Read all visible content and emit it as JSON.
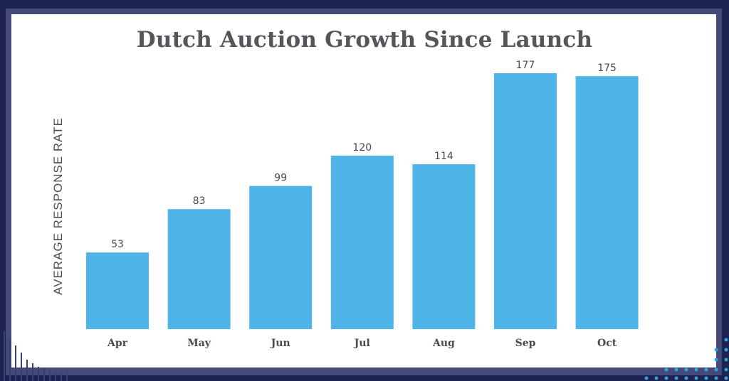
{
  "chart_data": {
    "type": "bar",
    "title": "Dutch Auction Growth Since Launch",
    "xlabel": "",
    "ylabel": "AVERAGE RESPONSE RATE",
    "categories": [
      "Apr",
      "May",
      "Jun",
      "Jul",
      "Aug",
      "Sep",
      "Oct"
    ],
    "values": [
      53,
      83,
      99,
      120,
      114,
      177,
      175
    ],
    "ylim": [
      0,
      180
    ],
    "grid": false,
    "legend": "none"
  },
  "colors": {
    "bar": "#4fb4e8",
    "background": "#1e2250",
    "frame": "#454a78",
    "panel": "#ffffff",
    "accent_dots": "#2aa8d8"
  }
}
